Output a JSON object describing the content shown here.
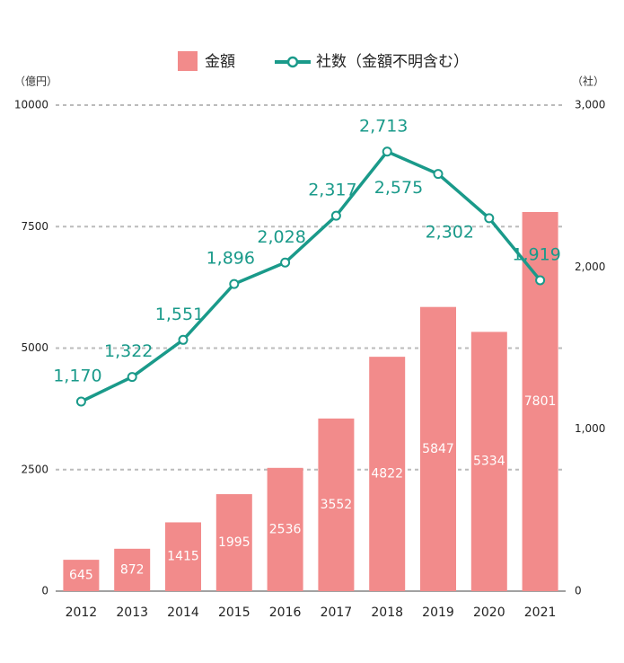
{
  "chart_data": {
    "type": "bar-line",
    "categories": [
      "2012",
      "2013",
      "2014",
      "2015",
      "2016",
      "2017",
      "2018",
      "2019",
      "2020",
      "2021"
    ],
    "series": [
      {
        "name": "金額",
        "type": "bar",
        "color": "#f28b8b",
        "axis": "y",
        "values": [
          645,
          872,
          1415,
          1995,
          2536,
          3552,
          4822,
          5847,
          5334,
          7801
        ]
      },
      {
        "name": "社数（金額不明含む）",
        "type": "line",
        "color": "#1a9a8a",
        "axis": "y2",
        "values": [
          1170,
          1322,
          1551,
          1896,
          2028,
          2317,
          2713,
          2575,
          2302,
          1919
        ],
        "value_labels": [
          "1,170",
          "1,322",
          "1,551",
          "1,896",
          "2,028",
          "2,317",
          "2,713",
          "2,575",
          "2,302",
          "1,919"
        ]
      }
    ],
    "y_label": "（億円）",
    "y2_label": "（社）",
    "ylim": [
      0,
      10000
    ],
    "yticks": [
      0,
      2500,
      5000,
      7500,
      10000
    ],
    "y2lim": [
      0,
      3000
    ],
    "y2ticks": [
      0,
      {
        "value": 1000,
        "label": "1,000"
      },
      {
        "value": 2000,
        "label": "2,000"
      },
      {
        "value": 3000,
        "label": "3,000"
      }
    ],
    "grid": true,
    "legend": "top"
  }
}
